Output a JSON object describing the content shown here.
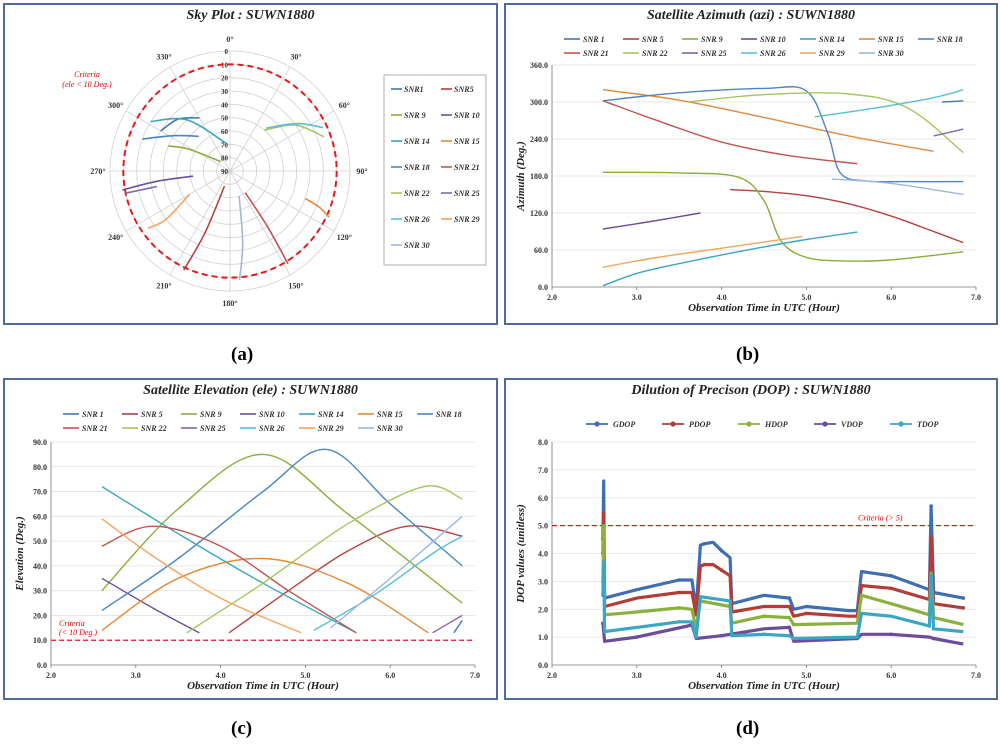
{
  "panel_labels": [
    "(a)",
    "(b)",
    "(c)",
    "(d)"
  ],
  "chart_data": [
    {
      "id": "a",
      "type": "polar",
      "title": "Sky Plot : SUWN1880",
      "radial_labels": [
        "0",
        "10",
        "20",
        "30",
        "40",
        "50",
        "60",
        "70",
        "80",
        "90"
      ],
      "angle_labels": [
        "0°",
        "30°",
        "60°",
        "90°",
        "120°",
        "150°",
        "180°",
        "210°",
        "240°",
        "270°",
        "300°",
        "330°"
      ],
      "criteria": {
        "label": [
          "Criteria",
          "(ele < 10 Deg.)"
        ],
        "elevation": 10
      },
      "legend": [
        "SNR1",
        "SNR5",
        "SNR 9",
        "SNR 10",
        "SNR 14",
        "SNR 15",
        "SNR 18",
        "SNR 21",
        "SNR 22",
        "SNR 25",
        "SNR 26",
        "SNR 29",
        "SNR 30"
      ],
      "tracks": [
        {
          "name": "SNR1",
          "points": [
            [
              300,
              30
            ],
            [
              315,
              35
            ],
            [
              330,
              44
            ]
          ]
        },
        {
          "name": "SNR5",
          "points": [
            [
              205,
              8
            ],
            [
              202,
              40
            ],
            [
              200,
              78
            ]
          ]
        },
        {
          "name": "SNR 9",
          "points": [
            [
              292,
              40
            ],
            [
              298,
              55
            ],
            [
              315,
              80
            ]
          ]
        },
        {
          "name": "SNR 10",
          "points": [
            [
              260,
              8
            ],
            [
              262,
              35
            ],
            [
              262,
              62
            ]
          ]
        },
        {
          "name": "SNR 14",
          "points": [
            [
              302,
              20
            ],
            [
              320,
              40
            ],
            [
              355,
              70
            ]
          ]
        },
        {
          "name": "SNR 15",
          "points": [
            [
              115,
              8
            ],
            [
              112,
              18
            ],
            [
              110,
              30
            ]
          ]
        },
        {
          "name": "SNR 18",
          "points": [
            [
              290,
              20
            ],
            [
              302,
              40
            ],
            [
              318,
              55
            ]
          ]
        },
        {
          "name": "SNR 21",
          "points": [
            [
              148,
              8
            ],
            [
              146,
              40
            ],
            [
              145,
              70
            ]
          ]
        },
        {
          "name": "SNR 22",
          "points": [
            [
              70,
              15
            ],
            [
              55,
              30
            ],
            [
              40,
              50
            ]
          ]
        },
        {
          "name": "SNR 25",
          "points": [
            [
              258,
              10
            ],
            [
              258,
              20
            ],
            [
              258,
              34
            ]
          ]
        },
        {
          "name": "SNR 26",
          "points": [
            [
              65,
              13
            ],
            [
              55,
              28
            ],
            [
              40,
              48
            ]
          ]
        },
        {
          "name": "SNR 29",
          "points": [
            [
              235,
              15
            ],
            [
              233,
              30
            ],
            [
              240,
              55
            ]
          ]
        },
        {
          "name": "SNR 30",
          "points": [
            [
              175,
              8
            ],
            [
              170,
              35
            ],
            [
              160,
              70
            ]
          ]
        }
      ]
    },
    {
      "id": "b",
      "type": "line",
      "title": "Satellite Azimuth (azi) : SUWN1880",
      "xlabel": "Observation Time in UTC (Hour)",
      "ylabel": "Azimuth (Deg.)",
      "xlim": [
        2.0,
        7.0
      ],
      "ylim": [
        0,
        360
      ],
      "xticks": [
        "2.0",
        "3.0",
        "4.0",
        "5.0",
        "6.0",
        "7.0"
      ],
      "yticks": [
        "0.0",
        "60.0",
        "120.0",
        "180.0",
        "240.0",
        "300.0",
        "360.0"
      ],
      "legend_rows": [
        [
          "SNR 1",
          "SNR 5",
          "SNR 9",
          "SNR 10",
          "SNR 14",
          "SNR 15",
          "SNR 18"
        ],
        [
          "SNR 21",
          "SNR 22",
          "SNR 25",
          "SNR 26",
          "SNR 29",
          "SNR 30"
        ]
      ],
      "series": [
        {
          "name": "SNR 1",
          "x": [
            6.6,
            6.85
          ],
          "y": [
            300,
            302
          ]
        },
        {
          "name": "SNR 5",
          "x": [
            4.1,
            4.5,
            5.0,
            5.5,
            6.0,
            6.5,
            6.85
          ],
          "y": [
            158,
            155,
            148,
            135,
            115,
            90,
            72
          ]
        },
        {
          "name": "SNR 9",
          "x": [
            2.6,
            3.5,
            4.2,
            4.5,
            4.7,
            5.0,
            5.5,
            6.0,
            6.85
          ],
          "y": [
            186,
            185,
            178,
            140,
            75,
            48,
            42,
            44,
            57
          ]
        },
        {
          "name": "SNR 10",
          "x": [
            2.6,
            3.2,
            3.75
          ],
          "y": [
            94,
            107,
            120
          ]
        },
        {
          "name": "SNR 14",
          "x": [
            2.6,
            3.0,
            3.5,
            4.0,
            4.5,
            5.0,
            5.6
          ],
          "y": [
            2,
            22,
            38,
            52,
            65,
            77,
            89
          ]
        },
        {
          "name": "SNR 15",
          "x": [
            2.6,
            3.5,
            4.5,
            5.5,
            6.5
          ],
          "y": [
            320,
            303,
            275,
            245,
            220
          ]
        },
        {
          "name": "SNR 18",
          "x": [
            2.6,
            3.5,
            4.5,
            5.0,
            5.25,
            5.4,
            5.7,
            6.2,
            6.85
          ],
          "y": [
            302,
            315,
            322,
            318,
            250,
            185,
            172,
            171,
            171
          ]
        },
        {
          "name": "SNR 21",
          "x": [
            2.6,
            3.2,
            4.0,
            4.8,
            5.6
          ],
          "y": [
            302,
            272,
            235,
            213,
            200
          ]
        },
        {
          "name": "SNR 22",
          "x": [
            3.6,
            4.5,
            5.5,
            6.2,
            6.85
          ],
          "y": [
            300,
            312,
            313,
            290,
            218
          ]
        },
        {
          "name": "SNR 25",
          "x": [
            6.5,
            6.85
          ],
          "y": [
            245,
            256
          ]
        },
        {
          "name": "SNR 26",
          "x": [
            5.1,
            5.8,
            6.5,
            6.85
          ],
          "y": [
            276,
            290,
            307,
            320
          ]
        },
        {
          "name": "SNR 29",
          "x": [
            2.6,
            3.2,
            4.0,
            4.95
          ],
          "y": [
            32,
            47,
            63,
            82
          ]
        },
        {
          "name": "SNR 30",
          "x": [
            5.3,
            6.0,
            6.85
          ],
          "y": [
            175,
            168,
            150
          ]
        }
      ]
    },
    {
      "id": "c",
      "type": "line",
      "title": "Satellite Elevation (ele) : SUWN1880",
      "xlabel": "Observation Time in UTC (Hour)",
      "ylabel": "Elevation (Deg.)",
      "xlim": [
        2.0,
        7.0
      ],
      "ylim": [
        0,
        90
      ],
      "xticks": [
        "2.0",
        "3.0",
        "4.0",
        "5.0",
        "6.0",
        "7.0"
      ],
      "yticks": [
        "0.0",
        "10.0",
        "20.0",
        "30.0",
        "40.0",
        "50.0",
        "60.0",
        "70.0",
        "80.0",
        "90.0"
      ],
      "criteria": {
        "value": 10,
        "label": [
          "Criteria",
          "(< 10 Deg.)"
        ]
      },
      "legend_rows": [
        [
          "SNR 1",
          "SNR 5",
          "SNR 9",
          "SNR 10",
          "SNR 14",
          "SNR 15",
          "SNR 18"
        ],
        [
          "SNR 21",
          "SNR 22",
          "SNR 25",
          "SNR 26",
          "SNR 29",
          "SNR 30"
        ]
      ],
      "series": [
        {
          "name": "SNR 1",
          "x": [
            6.75,
            6.85
          ],
          "y": [
            13,
            18
          ]
        },
        {
          "name": "SNR 5",
          "x": [
            4.1,
            4.8,
            5.5,
            6.2,
            6.85
          ],
          "y": [
            13,
            30,
            46,
            56,
            52
          ]
        },
        {
          "name": "SNR 9",
          "x": [
            2.6,
            3.5,
            4.5,
            5.5,
            6.85
          ],
          "y": [
            30,
            63,
            85,
            61,
            25
          ]
        },
        {
          "name": "SNR 10",
          "x": [
            2.6,
            3.2,
            3.75
          ],
          "y": [
            35,
            23,
            13
          ]
        },
        {
          "name": "SNR 14",
          "x": [
            2.6,
            3.5,
            4.5,
            5.6
          ],
          "y": [
            72,
            53,
            33,
            13
          ]
        },
        {
          "name": "SNR 15",
          "x": [
            2.6,
            3.5,
            4.5,
            5.5,
            6.45
          ],
          "y": [
            14,
            35,
            43,
            33,
            13
          ]
        },
        {
          "name": "SNR 18",
          "x": [
            2.6,
            3.5,
            4.5,
            5.25,
            6.0,
            6.85
          ],
          "y": [
            22,
            43,
            70,
            87,
            65,
            40
          ]
        },
        {
          "name": "SNR 21",
          "x": [
            2.6,
            3.2,
            4.0,
            4.8,
            5.6
          ],
          "y": [
            48,
            56,
            48,
            30,
            13
          ]
        },
        {
          "name": "SNR 22",
          "x": [
            3.6,
            4.5,
            5.5,
            6.4,
            6.85
          ],
          "y": [
            13,
            33,
            57,
            72,
            67
          ]
        },
        {
          "name": "SNR 25",
          "x": [
            6.5,
            6.85
          ],
          "y": [
            13,
            20
          ]
        },
        {
          "name": "SNR 26",
          "x": [
            5.1,
            5.8,
            6.5,
            6.85
          ],
          "y": [
            14,
            28,
            45,
            52
          ]
        },
        {
          "name": "SNR 29",
          "x": [
            2.6,
            3.2,
            4.0,
            4.95
          ],
          "y": [
            59,
            44,
            27,
            13
          ]
        },
        {
          "name": "SNR 30",
          "x": [
            5.3,
            6.0,
            6.85
          ],
          "y": [
            15,
            35,
            60
          ]
        }
      ]
    },
    {
      "id": "d",
      "type": "line",
      "title": "Dilution of Precison (DOP) : SUWN1880",
      "xlabel": "Observation Time in UTC (Hour)",
      "ylabel": "DOP values (unitless)",
      "xlim": [
        2.0,
        7.0
      ],
      "ylim": [
        0,
        8
      ],
      "xticks": [
        "2.0",
        "3.0",
        "4.0",
        "5.0",
        "6.0",
        "7.0"
      ],
      "yticks": [
        "0.0",
        "1.0",
        "2.0",
        "3.0",
        "4.0",
        "5.0",
        "6.0",
        "7.0",
        "8.0"
      ],
      "criteria": {
        "value": 5,
        "label": "Criteria (> 5)"
      },
      "legend": [
        "GDOP",
        "PDOP",
        "HDOP",
        "VDOP",
        "TDOP"
      ],
      "series": [
        {
          "name": "GDOP",
          "x": [
            2.6,
            2.61,
            2.62,
            3.0,
            3.5,
            3.65,
            3.7,
            3.75,
            3.8,
            3.9,
            4.0,
            4.1,
            4.12,
            4.5,
            4.8,
            4.85,
            5.0,
            5.5,
            5.6,
            5.65,
            6.0,
            6.45,
            6.47,
            6.5,
            6.85
          ],
          "y": [
            4.5,
            6.6,
            2.4,
            2.7,
            3.05,
            3.05,
            2.0,
            4.3,
            4.35,
            4.4,
            4.1,
            3.85,
            2.2,
            2.5,
            2.4,
            2.0,
            2.1,
            1.95,
            1.95,
            3.35,
            3.2,
            2.7,
            5.7,
            2.6,
            2.4
          ]
        },
        {
          "name": "PDOP",
          "x": [
            2.6,
            2.61,
            2.62,
            3.0,
            3.5,
            3.65,
            3.7,
            3.75,
            3.8,
            3.9,
            4.0,
            4.1,
            4.12,
            4.5,
            4.8,
            4.85,
            5.0,
            5.5,
            5.6,
            5.65,
            6.0,
            6.45,
            6.47,
            6.5,
            6.85
          ],
          "y": [
            4.0,
            5.45,
            2.1,
            2.4,
            2.6,
            2.6,
            1.8,
            3.55,
            3.6,
            3.6,
            3.4,
            3.2,
            1.9,
            2.1,
            2.1,
            1.75,
            1.85,
            1.75,
            1.75,
            2.85,
            2.75,
            2.35,
            4.6,
            2.2,
            2.05
          ]
        },
        {
          "name": "HDOP",
          "x": [
            2.6,
            2.61,
            2.62,
            3.0,
            3.5,
            3.65,
            3.7,
            3.75,
            4.1,
            4.12,
            4.5,
            4.8,
            4.85,
            5.6,
            5.65,
            6.0,
            6.45,
            6.47,
            6.5,
            6.85
          ],
          "y": [
            3.0,
            5.0,
            1.8,
            1.9,
            2.05,
            2.0,
            1.3,
            2.3,
            2.1,
            1.5,
            1.75,
            1.7,
            1.45,
            1.5,
            2.5,
            2.2,
            1.8,
            3.3,
            1.7,
            1.45
          ]
        },
        {
          "name": "VDOP",
          "x": [
            2.6,
            2.62,
            3.0,
            3.6,
            3.65,
            3.7,
            4.0,
            4.5,
            4.8,
            4.85,
            5.6,
            5.65,
            6.0,
            6.45,
            6.5,
            6.85
          ],
          "y": [
            1.5,
            0.85,
            1.0,
            1.4,
            1.45,
            0.95,
            1.05,
            1.3,
            1.35,
            0.85,
            0.95,
            1.1,
            1.1,
            1.0,
            0.95,
            0.75
          ]
        },
        {
          "name": "TDOP",
          "x": [
            2.6,
            2.61,
            2.62,
            3.0,
            3.5,
            3.65,
            3.7,
            3.75,
            4.1,
            4.12,
            4.5,
            4.8,
            4.85,
            5.6,
            5.65,
            6.0,
            6.45,
            6.47,
            6.5,
            6.85
          ],
          "y": [
            2.5,
            3.7,
            1.2,
            1.35,
            1.55,
            1.55,
            1.0,
            2.45,
            2.3,
            1.05,
            1.1,
            1.05,
            0.95,
            1.0,
            1.85,
            1.75,
            1.4,
            3.2,
            1.3,
            1.2
          ]
        }
      ]
    }
  ],
  "colors": {
    "SNR1": "#3f77b8",
    "SNR5": "#b5413d",
    "SNR9": "#8aad3e",
    "SNR10": "#6e4e98",
    "SNR14": "#3aa6be",
    "SNR15": "#e4893a",
    "SNR18": "#4b86c4",
    "SNR21": "#c45450",
    "SNR22": "#a6c55c",
    "SNR25": "#8466ad",
    "SNR26": "#59bfd3",
    "SNR29": "#f5a45d",
    "SNR30": "#9db9dc",
    "GDOP": "#3f6fb1",
    "PDOP": "#b43c38",
    "HDOP": "#8ab13f",
    "VDOP": "#6b4d99",
    "TDOP": "#3aa7c2",
    "criteria": "#e41a1c",
    "grid": "#d0d0d0",
    "panel_border": "#4f6b9b"
  }
}
